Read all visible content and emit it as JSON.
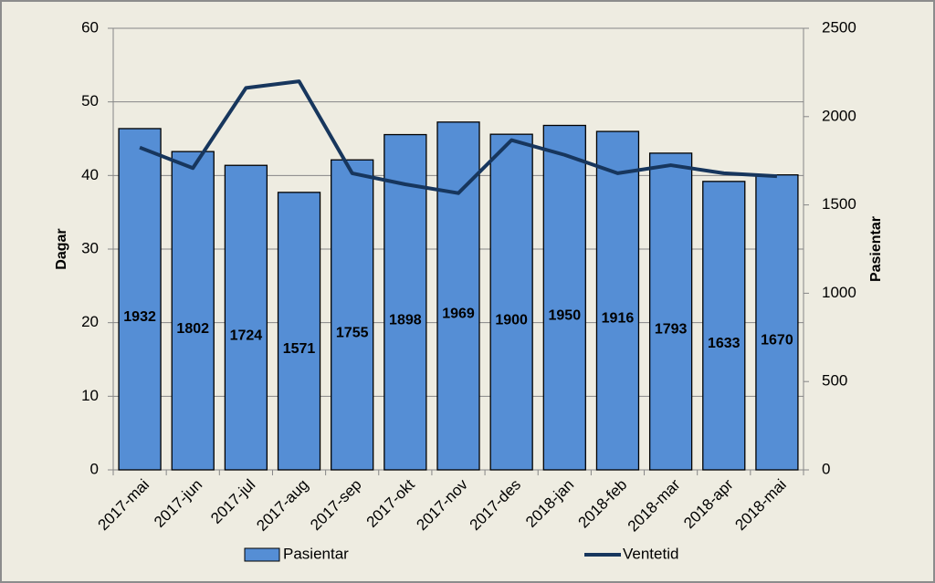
{
  "chart_data": {
    "type": "bar",
    "categories": [
      "2017-mai",
      "2017-jun",
      "2017-jul",
      "2017-aug",
      "2017-sep",
      "2017-okt",
      "2017-nov",
      "2017-des",
      "2018-jan",
      "2018-feb",
      "2018-mar",
      "2018-apr",
      "2018-mai"
    ],
    "series": [
      {
        "name": "Pasientar",
        "type": "bar",
        "axis": "y2",
        "color": "#558ed5",
        "values": [
          1932,
          1802,
          1724,
          1571,
          1755,
          1898,
          1969,
          1900,
          1950,
          1916,
          1793,
          1633,
          1670
        ]
      },
      {
        "name": "Ventetid",
        "type": "line",
        "color": "#17365d",
        "values": [
          43.8,
          41.0,
          51.9,
          52.8,
          40.3,
          38.8,
          37.6,
          44.8,
          42.8,
          40.3,
          41.4,
          40.3,
          39.9
        ]
      }
    ],
    "ylabel": "Dagar",
    "y2label": "Pasientar",
    "ylim": [
      0,
      60
    ],
    "yticks": [
      0,
      10,
      20,
      30,
      40,
      50,
      60
    ],
    "y2lim": [
      0,
      2500
    ],
    "y2ticks": [
      0,
      500,
      1000,
      1500,
      2000,
      2500
    ],
    "grid": true,
    "legend": "bottom"
  }
}
